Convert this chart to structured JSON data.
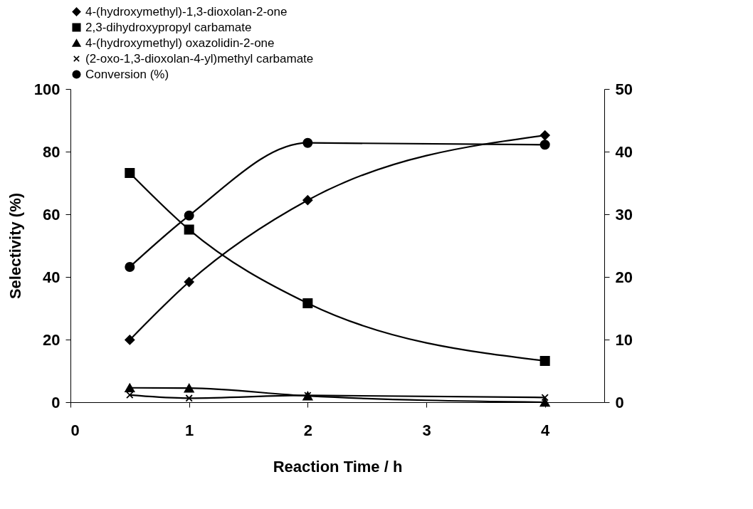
{
  "chart_data": {
    "type": "line",
    "xlabel": "Reaction Time / h",
    "ylabel": "Selectivity (%)",
    "x": [
      0.5,
      1,
      2,
      4
    ],
    "xlim": [
      0,
      4.5
    ],
    "xticks": [
      0,
      1,
      2,
      3,
      4
    ],
    "ylim": [
      0,
      100
    ],
    "yticks": [
      0,
      20,
      40,
      60,
      80,
      100
    ],
    "y2lim": [
      0,
      50
    ],
    "y2ticks": [
      0,
      10,
      20,
      30,
      40,
      50
    ],
    "grid": false,
    "legend": "top",
    "series": [
      {
        "name": "4-(hydroxymethyl)-1,3-dioxolan-2-one",
        "color": "#000000",
        "marker": "diamond",
        "values": [
          19.9,
          38.4,
          64.5,
          85.2
        ]
      },
      {
        "name": "2,3-dihydroxypropyl carbamate",
        "color": "#000000",
        "marker": "square",
        "values": [
          73.2,
          55.1,
          31.6,
          13.2
        ]
      },
      {
        "name": "4-(hydroxymethyl) oxazolidin-2-one",
        "color": "#000000",
        "marker": "triangle",
        "values": [
          4.6,
          4.5,
          2,
          0
        ]
      },
      {
        "name": "(2-oxo-1,3-dioxolan-4-yl)methyl carbamate",
        "color": "#000000",
        "marker": "cross",
        "values": [
          2.3,
          1.3,
          2.2,
          1.5
        ]
      },
      {
        "name": "Conversion (%)",
        "color": "#000000",
        "marker": "circle",
        "axis": "y2",
        "values": [
          21.6,
          29.8,
          41.4,
          41.1
        ]
      }
    ]
  }
}
